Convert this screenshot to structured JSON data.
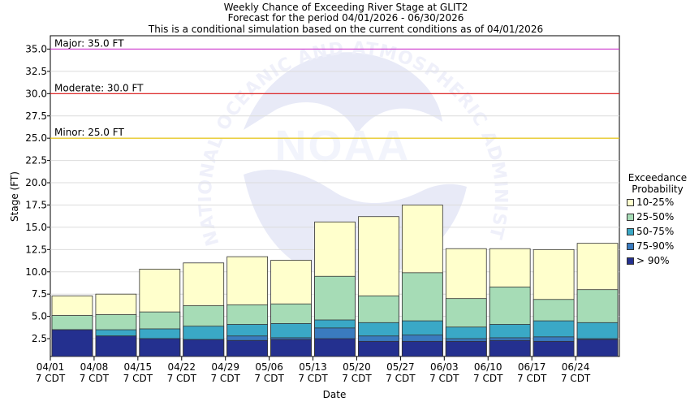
{
  "titles": {
    "line1": "Weekly Chance of Exceeding River Stage at GLIT2",
    "line2": "Forecast for the period 04/01/2026 - 06/30/2026",
    "line3": "This is a conditional simulation based on the current conditions as of 04/01/2026"
  },
  "watermark": {
    "logo_text": "NOAA",
    "ring_text": "NATIONAL OCEANIC AND ATMOSPHERIC ADMINISTRATION"
  },
  "chart_data": {
    "type": "bar",
    "stacked": true,
    "xlabel": "Date",
    "ylabel": "Stage (FT)",
    "ylim": [
      0.5,
      36.5
    ],
    "yticks": [
      "2.5",
      "5.0",
      "7.5",
      "10.0",
      "12.5",
      "15.0",
      "17.5",
      "20.0",
      "22.5",
      "25.0",
      "27.5",
      "30.0",
      "32.5",
      "35.0"
    ],
    "grid": "horizontal",
    "categories": [
      "04/01",
      "04/08",
      "04/15",
      "04/22",
      "04/29",
      "05/06",
      "05/13",
      "05/20",
      "05/27",
      "06/03",
      "06/10",
      "06/17",
      "06/24"
    ],
    "category_sublabel": "7 CDT",
    "thresholds": [
      {
        "label": "Major: 35.0 FT",
        "value": 35.0,
        "color": "#cc33cc"
      },
      {
        "label": "Moderate: 30.0 FT",
        "value": 30.0,
        "color": "#dd1111"
      },
      {
        "label": "Minor: 25.0 FT",
        "value": 25.0,
        "color": "#e6c200"
      }
    ],
    "legend_title": [
      "Exceedance",
      "Probability"
    ],
    "legend_position": "right",
    "series": [
      {
        "name": "> 90%",
        "color": "#24308f",
        "values": [
          3.5,
          2.8,
          2.5,
          2.4,
          2.3,
          2.4,
          2.5,
          2.2,
          2.2,
          2.2,
          2.3,
          2.2,
          2.4
        ]
      },
      {
        "name": "75-90%",
        "color": "#3a7bbf",
        "values": [
          3.5,
          2.8,
          2.5,
          2.4,
          2.8,
          2.6,
          3.7,
          2.8,
          2.9,
          2.5,
          2.6,
          2.7,
          2.5
        ]
      },
      {
        "name": "50-75%",
        "color": "#3aa8c6",
        "values": [
          3.5,
          3.5,
          3.6,
          3.9,
          4.1,
          4.2,
          4.6,
          4.3,
          4.5,
          3.8,
          4.1,
          4.5,
          4.3
        ]
      },
      {
        "name": "25-50%",
        "color": "#a6dcb6",
        "values": [
          5.1,
          5.2,
          5.5,
          6.2,
          6.3,
          6.4,
          9.5,
          7.3,
          9.9,
          7.0,
          8.3,
          6.9,
          8.0
        ]
      },
      {
        "name": "10-25%",
        "color": "#ffffcc",
        "values": [
          7.3,
          7.5,
          10.3,
          11.0,
          11.7,
          11.3,
          15.6,
          16.2,
          17.5,
          12.6,
          12.6,
          12.5,
          13.2
        ]
      }
    ]
  }
}
